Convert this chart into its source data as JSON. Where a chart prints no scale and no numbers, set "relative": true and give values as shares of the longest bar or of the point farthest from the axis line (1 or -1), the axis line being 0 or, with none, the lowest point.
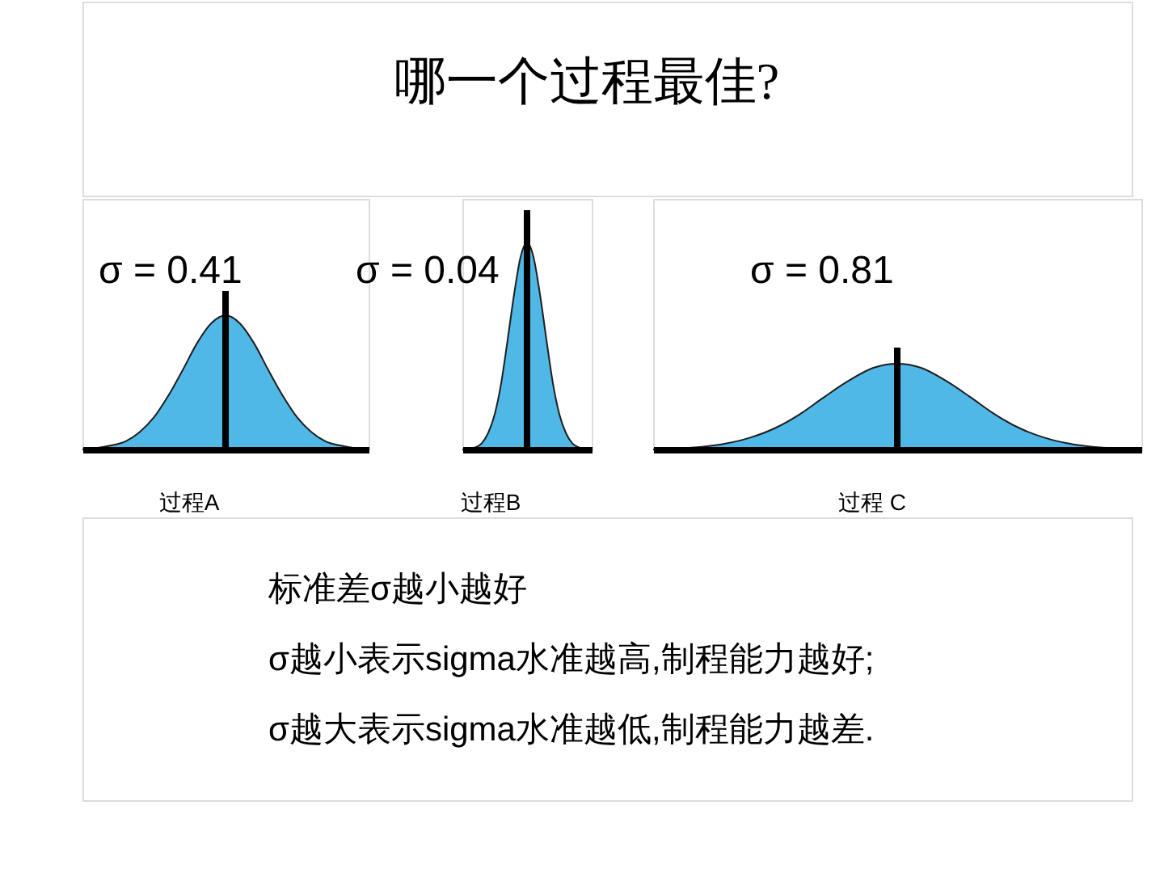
{
  "chart_data": [
    {
      "type": "other",
      "title": "哪一个过程最佳?"
    },
    {
      "type": "area",
      "title": "σ = 0.41",
      "xlabel": "过程A",
      "relative": true,
      "color": "#4fb8e6",
      "categories": [
        null,
        null,
        null,
        null,
        null,
        null,
        null,
        null,
        null,
        null,
        null,
        null,
        null,
        null,
        null,
        null,
        null,
        null,
        null,
        null,
        null
      ],
      "values": [
        0,
        0.01,
        0.03,
        0.06,
        0.13,
        0.24,
        0.4,
        0.59,
        0.79,
        0.94,
        1,
        0.94,
        0.79,
        0.59,
        0.4,
        0.24,
        0.13,
        0.06,
        0.03,
        0.01,
        0
      ]
    },
    {
      "type": "area",
      "title": "σ = 0.04",
      "xlabel": "过程B",
      "relative": true,
      "color": "#4fb8e6",
      "categories": [
        null,
        null,
        null,
        null,
        null,
        null,
        null,
        null,
        null,
        null,
        null,
        null,
        null,
        null,
        null,
        null,
        null,
        null,
        null,
        null,
        null
      ],
      "values": [
        0,
        0,
        0.01,
        0.03,
        0.08,
        0.17,
        0.32,
        0.53,
        0.75,
        0.93,
        1,
        0.93,
        0.75,
        0.53,
        0.32,
        0.17,
        0.08,
        0.03,
        0.01,
        0,
        0
      ]
    },
    {
      "type": "area",
      "title": "σ = 0.81",
      "xlabel": "过程 C",
      "relative": true,
      "color": "#4fb8e6",
      "categories": [
        null,
        null,
        null,
        null,
        null,
        null,
        null,
        null,
        null,
        null,
        null,
        null,
        null,
        null,
        null,
        null,
        null,
        null,
        null,
        null,
        null
      ],
      "values": [
        0,
        0.01,
        0.03,
        0.07,
        0.14,
        0.25,
        0.41,
        0.61,
        0.8,
        0.95,
        1,
        0.95,
        0.8,
        0.61,
        0.41,
        0.25,
        0.14,
        0.07,
        0.03,
        0.01,
        0
      ]
    },
    {
      "type": "other",
      "annotations": [
        "标准差σ越小越好",
        "σ越小表示sigma水准越高,制程能力越好;",
        "σ越大表示sigma水准越低,制程能力越差."
      ]
    }
  ]
}
